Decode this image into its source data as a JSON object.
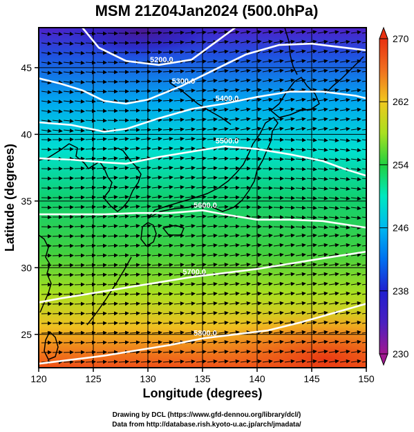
{
  "title": "MSM 21Z04Jan2024 (500.0hPa)",
  "credits": [
    "Drawing by DCL (https://www.gfd-dennou.org/library/dcl/)",
    "Data from http://database.rish.kyoto-u.ac.jp/arch/jmadata/"
  ],
  "colors": {
    "contour": "#ffffff",
    "coastline": "#000000",
    "vector": "#000000",
    "colormap": [
      "#a01890",
      "#2020d0",
      "#00a8f0",
      "#00e8c0",
      "#20d040",
      "#a8e020",
      "#f0c820",
      "#f07020",
      "#e83010"
    ]
  },
  "chart_data": {
    "type": "heatmap",
    "title": "MSM 21Z04Jan2024 (500.0hPa)",
    "xlabel": "Longitude (degrees)",
    "ylabel": "Latitude  (degrees)",
    "xlim": [
      120,
      150
    ],
    "ylim": [
      22.5,
      48
    ],
    "xticks": [
      120,
      125,
      130,
      135,
      140,
      145,
      150
    ],
    "yticks": [
      25,
      30,
      35,
      40,
      45
    ],
    "colorbar": {
      "min": 230,
      "max": 270,
      "ticks": [
        270,
        262,
        254,
        246,
        238,
        230
      ],
      "extend": "both"
    },
    "contours": [
      {
        "label": "5200.0",
        "points": [
          [
            124,
            48
          ],
          [
            125.5,
            46.5
          ],
          [
            128,
            45.5
          ],
          [
            131,
            45.2
          ],
          [
            134,
            45.6
          ],
          [
            136,
            46.8
          ],
          [
            138,
            48
          ]
        ]
      },
      {
        "label": "5300.0",
        "points": [
          [
            120,
            44.2
          ],
          [
            122,
            43.8
          ],
          [
            124,
            43.3
          ],
          [
            126,
            42.5
          ],
          [
            128,
            42.3
          ],
          [
            130,
            42.6
          ],
          [
            133,
            43.6
          ],
          [
            136,
            44.8
          ],
          [
            139,
            46
          ],
          [
            142,
            46.7
          ],
          [
            145,
            46.8
          ],
          [
            148,
            46.5
          ],
          [
            150,
            46.3
          ]
        ]
      },
      {
        "label": "5400.0",
        "points": [
          [
            120,
            40.9
          ],
          [
            123,
            40.7
          ],
          [
            126,
            40.2
          ],
          [
            128,
            40.4
          ],
          [
            131,
            41.2
          ],
          [
            134,
            41.9
          ],
          [
            137,
            42.3
          ],
          [
            140,
            42.8
          ],
          [
            143,
            43.2
          ],
          [
            146,
            43.2
          ],
          [
            149,
            42.9
          ],
          [
            150,
            42.7
          ]
        ]
      },
      {
        "label": "5500.0",
        "points": [
          [
            120,
            38.2
          ],
          [
            123,
            38.1
          ],
          [
            126,
            37.9
          ],
          [
            128,
            37.8
          ],
          [
            131,
            38.3
          ],
          [
            134,
            38.7
          ],
          [
            137,
            39.1
          ],
          [
            140,
            38.9
          ],
          [
            143,
            38.5
          ],
          [
            146,
            38.0
          ],
          [
            148,
            37.4
          ],
          [
            150,
            36.9
          ]
        ]
      },
      {
        "label": "5600.0",
        "points": [
          [
            120,
            34.0
          ],
          [
            123,
            34.0
          ],
          [
            126,
            34.0
          ],
          [
            129,
            34.1
          ],
          [
            132,
            34.1
          ],
          [
            135,
            34.3
          ],
          [
            137,
            34.0
          ],
          [
            140,
            33.6
          ],
          [
            143,
            33.6
          ],
          [
            146,
            33.5
          ],
          [
            150,
            33.0
          ]
        ]
      },
      {
        "label": "5700.0",
        "points": [
          [
            120,
            27.4
          ],
          [
            122,
            27.7
          ],
          [
            125,
            28.1
          ],
          [
            128,
            28.5
          ],
          [
            131,
            28.9
          ],
          [
            134,
            29.3
          ],
          [
            137,
            29.6
          ],
          [
            140,
            29.9
          ],
          [
            143,
            30.3
          ],
          [
            146,
            30.7
          ],
          [
            150,
            31.2
          ]
        ]
      },
      {
        "label": "5800.0",
        "points": [
          [
            120,
            22.8
          ],
          [
            123,
            23.1
          ],
          [
            126,
            23.4
          ],
          [
            129,
            23.8
          ],
          [
            132,
            24.2
          ],
          [
            135,
            24.7
          ],
          [
            138,
            25.0
          ],
          [
            141,
            25.3
          ],
          [
            144,
            25.9
          ],
          [
            147,
            26.6
          ],
          [
            150,
            27.3
          ]
        ]
      }
    ]
  }
}
